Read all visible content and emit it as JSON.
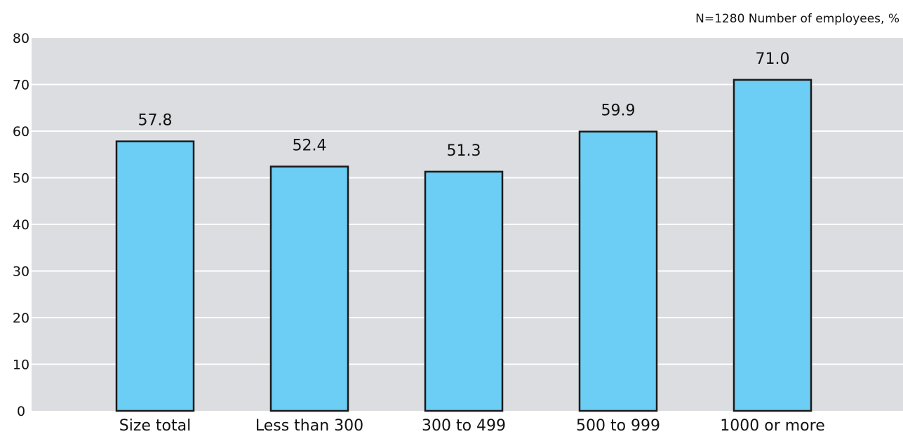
{
  "note": "N=1280 Number of employees, %",
  "colors": {
    "plot_bg": "#dcdde0",
    "bar_fill": "#6ccef5",
    "bar_stroke": "#1a1a1a",
    "grid": "#ffffff"
  },
  "chart_data": {
    "type": "bar",
    "categories": [
      "Size total",
      "Less than 300",
      "300 to 499",
      "500 to 999",
      "1000 or more"
    ],
    "values": [
      57.8,
      52.4,
      51.3,
      59.9,
      71.0
    ],
    "value_labels": [
      "57.8",
      "52.4",
      "51.3",
      "59.9",
      "71.0"
    ],
    "title": "",
    "xlabel": "",
    "ylabel": "",
    "ylim": [
      0,
      80
    ],
    "yticks": [
      0,
      10,
      20,
      30,
      40,
      50,
      60,
      70,
      80
    ],
    "grid": true,
    "legend": "none"
  }
}
